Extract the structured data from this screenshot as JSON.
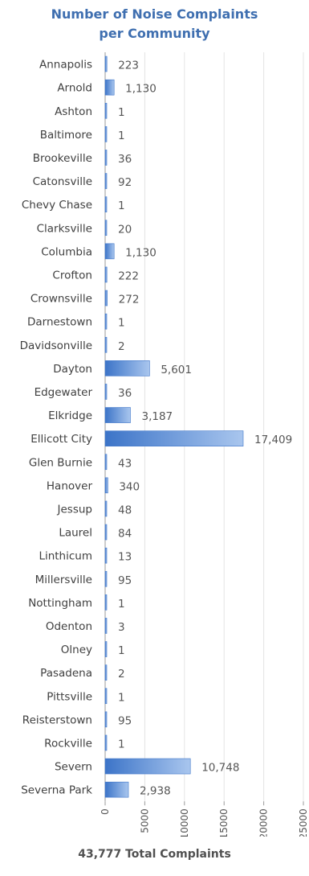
{
  "header": {
    "title_line1": "Number of Noise Complaints",
    "title_line2": "per Community"
  },
  "footer": {
    "total": "43,777 Total Complaints"
  },
  "chart_data": {
    "type": "bar",
    "orientation": "horizontal",
    "categories": [
      "Annapolis",
      "Arnold",
      "Ashton",
      "Baltimore",
      "Brookeville",
      "Catonsville",
      "Chevy Chase",
      "Clarksville",
      "Columbia",
      "Crofton",
      "Crownsville",
      "Darnestown",
      "Davidsonville",
      "Dayton",
      "Edgewater",
      "Elkridge",
      "Ellicott City",
      "Glen Burnie",
      "Hanover",
      "Jessup",
      "Laurel",
      "Linthicum",
      "Millersville",
      "Nottingham",
      "Odenton",
      "Olney",
      "Pasadena",
      "Pittsville",
      "Reisterstown",
      "Rockville",
      "Severn",
      "Severna Park"
    ],
    "values": [
      223,
      1130,
      1,
      1,
      36,
      92,
      1,
      20,
      1130,
      222,
      272,
      1,
      2,
      5601,
      36,
      3187,
      17409,
      43,
      340,
      48,
      84,
      13,
      95,
      1,
      3,
      1,
      2,
      1,
      95,
      1,
      10748,
      2938
    ],
    "value_labels": [
      "223",
      "1,130",
      "1",
      "1",
      "36",
      "92",
      "1",
      "20",
      "1,130",
      "222",
      "272",
      "1",
      "2",
      "5,601",
      "36",
      "3,187",
      "17,409",
      "43",
      "340",
      "48",
      "84",
      "13",
      "95",
      "1",
      "3",
      "1",
      "2",
      "1",
      "95",
      "1",
      "10,748",
      "2,938"
    ],
    "ticks": [
      0,
      5000,
      10000,
      15000,
      20000,
      25000
    ],
    "tick_labels": [
      "0",
      "5000",
      "10000",
      "15000",
      "20000",
      "25000"
    ],
    "xlim": [
      0,
      25000
    ],
    "grid": true,
    "bar_color": "#4f86d4"
  }
}
